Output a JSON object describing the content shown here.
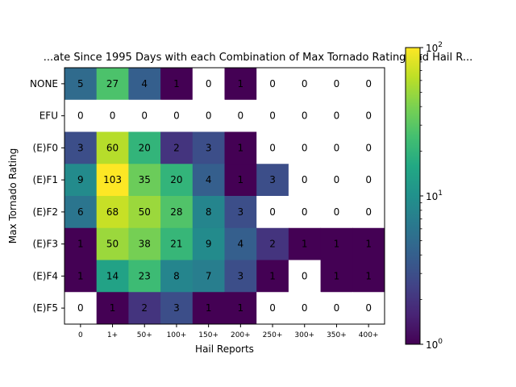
{
  "chart_data": {
    "type": "heatmap",
    "title": "...ate Since 1995 Days with each Combination of Max Tornado Rating and Hail R...",
    "xlabel": "Hail Reports",
    "ylabel": "Max Tornado Rating",
    "x_categories": [
      "0",
      "1+",
      "50+",
      "100+",
      "150+",
      "200+",
      "250+",
      "300+",
      "350+",
      "400+"
    ],
    "y_categories": [
      "NONE",
      "EFU",
      "(E)F0",
      "(E)F1",
      "(E)F2",
      "(E)F3",
      "(E)F4",
      "(E)F5"
    ],
    "values": [
      [
        5,
        27,
        4,
        1,
        0,
        1,
        0,
        0,
        0,
        0
      ],
      [
        0,
        0,
        0,
        0,
        0,
        0,
        0,
        0,
        0,
        0
      ],
      [
        3,
        60,
        20,
        2,
        3,
        1,
        0,
        0,
        0,
        0
      ],
      [
        9,
        103,
        35,
        20,
        4,
        1,
        3,
        0,
        0,
        0
      ],
      [
        6,
        68,
        50,
        28,
        8,
        3,
        0,
        0,
        0,
        0
      ],
      [
        1,
        50,
        38,
        21,
        9,
        4,
        2,
        1,
        1,
        1
      ],
      [
        1,
        14,
        23,
        8,
        7,
        3,
        1,
        0,
        1,
        1
      ],
      [
        0,
        1,
        2,
        3,
        1,
        1,
        0,
        0,
        0,
        0
      ]
    ],
    "colorscale": "viridis",
    "color_scale_type": "log",
    "color_range": [
      1,
      100
    ],
    "zero_color": "#ffffff",
    "colorbar": {
      "major_ticks": [
        {
          "value": 1,
          "base": "10",
          "exp": "0"
        },
        {
          "value": 10,
          "base": "10",
          "exp": "1"
        },
        {
          "value": 100,
          "base": "10",
          "exp": "2"
        }
      ],
      "placement": "right"
    }
  }
}
